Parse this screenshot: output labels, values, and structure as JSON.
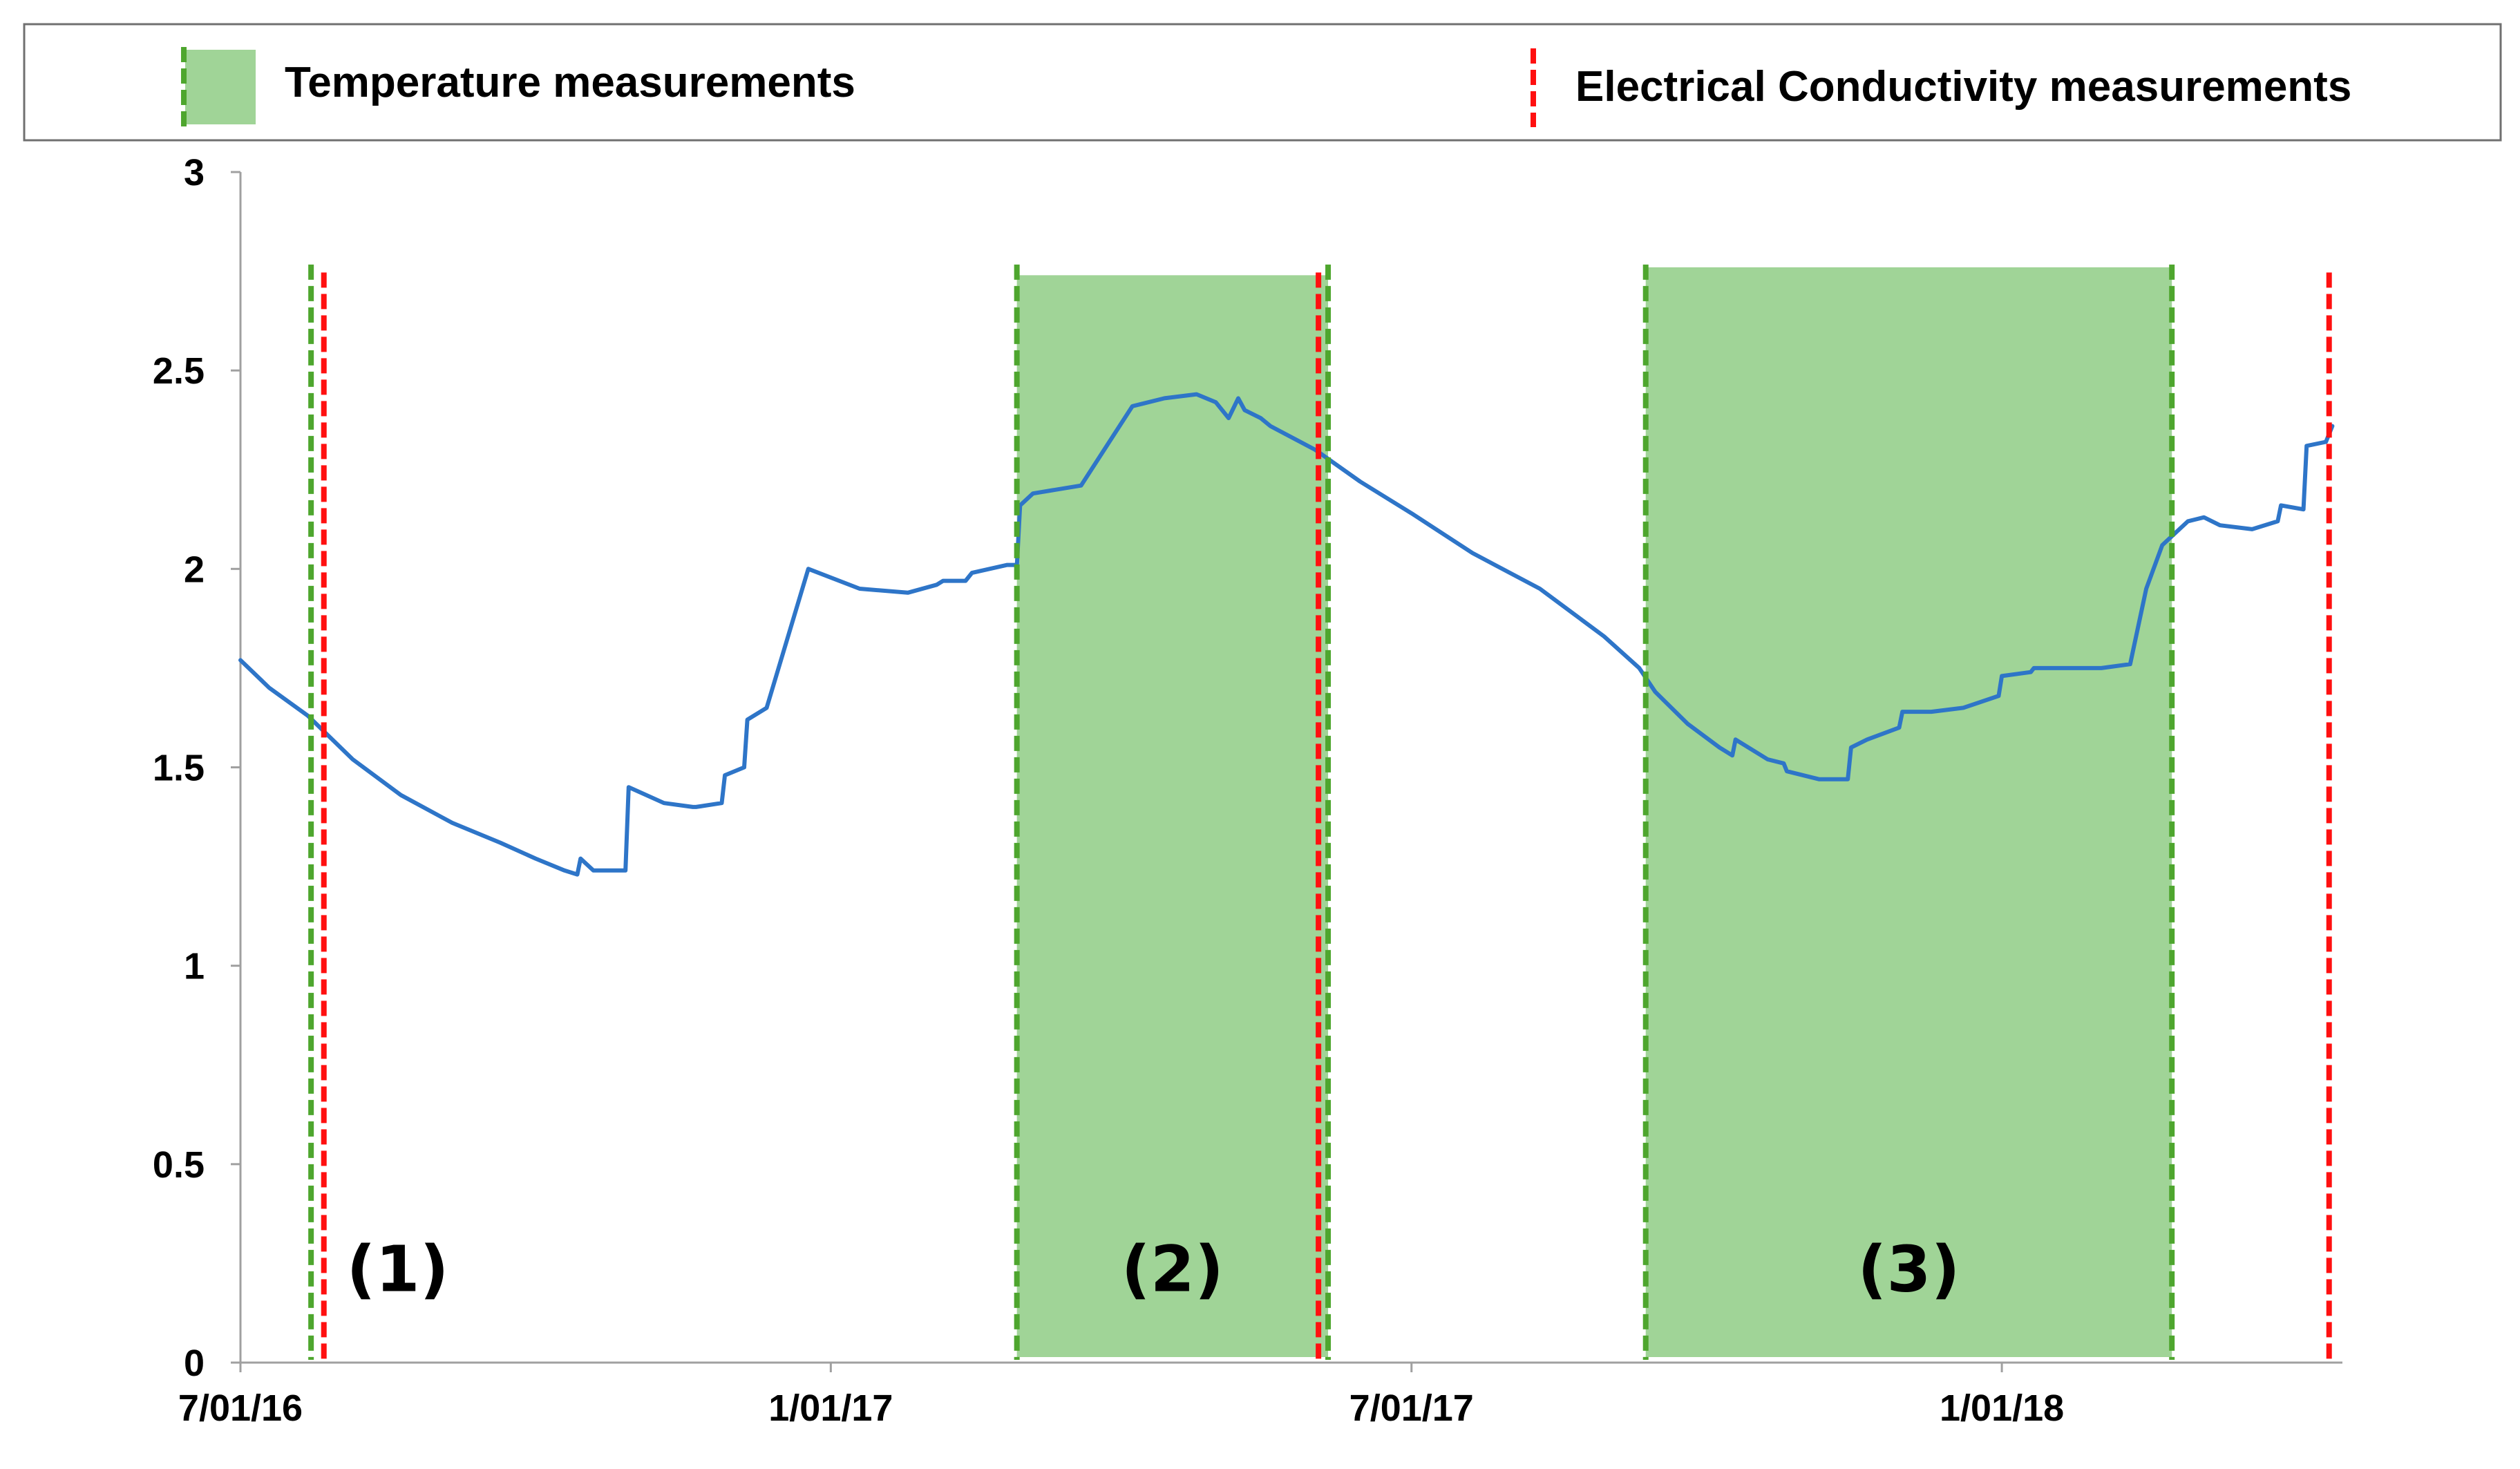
{
  "colors": {
    "series": "#2E75C8",
    "temperature_fill": "#A0D497",
    "temperature_line": "#4EA62E",
    "ec_line": "#FF1010",
    "axis": "#A0A0A0",
    "legend_border": "#707070"
  },
  "chart_data": {
    "type": "line",
    "title": "",
    "xlabel": "",
    "ylabel": "",
    "x_type": "date",
    "xlim": [
      "2016-07-01",
      "2018-04-15"
    ],
    "ylim": [
      0,
      3
    ],
    "yticks": [
      "0",
      "0.5",
      "1",
      "1.5",
      "2",
      "2.5",
      "3"
    ],
    "xticks": [
      {
        "date": "2016-07-01",
        "label": "7/01/16"
      },
      {
        "date": "2017-01-01",
        "label": "1/01/17"
      },
      {
        "date": "2017-07-01",
        "label": "7/01/17"
      },
      {
        "date": "2018-01-01",
        "label": "1/01/18"
      }
    ],
    "grid": false,
    "legend_position": "top",
    "legend": {
      "temperature": "Temperature measurements",
      "ec": "Electrical Conductivity measurements"
    },
    "series": [
      {
        "x": [
          "2016-07-01",
          "2016-07-10",
          "2016-07-22",
          "2016-08-05",
          "2016-08-20",
          "2016-09-05",
          "2016-09-20",
          "2016-10-01",
          "2016-10-10",
          "2016-10-14",
          "2016-10-15",
          "2016-10-19",
          "2016-10-20",
          "2016-10-25",
          "2016-10-29",
          "2016-10-30",
          "2016-11-10",
          "2016-11-19",
          "2016-11-20",
          "2016-11-28",
          "2016-11-29",
          "2016-12-05",
          "2016-12-06",
          "2016-12-12",
          "2016-12-25",
          "2017-01-10",
          "2017-01-25",
          "2017-02-03",
          "2017-02-05",
          "2017-02-12",
          "2017-02-14",
          "2017-02-25",
          "2017-02-28",
          "2017-03-01",
          "2017-03-05",
          "2017-03-20",
          "2017-04-05",
          "2017-04-15",
          "2017-04-25",
          "2017-05-01",
          "2017-05-05",
          "2017-05-08",
          "2017-05-10",
          "2017-05-15",
          "2017-05-18",
          "2017-06-01",
          "2017-06-15",
          "2017-07-01",
          "2017-07-20",
          "2017-08-10",
          "2017-08-30",
          "2017-09-10",
          "2017-09-15",
          "2017-09-25",
          "2017-10-05",
          "2017-10-09",
          "2017-10-10",
          "2017-10-20",
          "2017-10-25",
          "2017-10-26",
          "2017-11-05",
          "2017-11-10",
          "2017-11-14",
          "2017-11-15",
          "2017-11-20",
          "2017-11-30",
          "2017-12-01",
          "2017-12-10",
          "2017-12-20",
          "2017-12-31",
          "2018-01-01",
          "2018-01-10",
          "2018-01-11",
          "2018-01-20",
          "2018-02-01",
          "2018-02-10",
          "2018-02-15",
          "2018-02-20",
          "2018-02-28",
          "2018-03-05",
          "2018-03-10",
          "2018-03-20",
          "2018-03-28",
          "2018-03-29",
          "2018-04-05",
          "2018-04-06",
          "2018-04-12",
          "2018-04-14"
        ],
        "y": [
          1.77,
          1.7,
          1.63,
          1.52,
          1.43,
          1.36,
          1.31,
          1.27,
          1.24,
          1.23,
          1.27,
          1.24,
          1.24,
          1.24,
          1.24,
          1.45,
          1.41,
          1.4,
          1.4,
          1.41,
          1.48,
          1.5,
          1.62,
          1.65,
          2.0,
          1.95,
          1.94,
          1.96,
          1.97,
          1.97,
          1.99,
          2.01,
          2.01,
          2.16,
          2.19,
          2.21,
          2.41,
          2.43,
          2.44,
          2.42,
          2.38,
          2.43,
          2.4,
          2.38,
          2.36,
          2.3,
          2.22,
          2.14,
          2.04,
          1.95,
          1.83,
          1.75,
          1.69,
          1.61,
          1.55,
          1.53,
          1.57,
          1.52,
          1.51,
          1.49,
          1.47,
          1.47,
          1.47,
          1.55,
          1.57,
          1.6,
          1.64,
          1.64,
          1.65,
          1.68,
          1.73,
          1.74,
          1.75,
          1.75,
          1.75,
          1.76,
          1.95,
          2.06,
          2.12,
          2.13,
          2.11,
          2.1,
          2.12,
          2.16,
          2.15,
          2.31,
          2.32,
          2.36
        ]
      }
    ],
    "temperature_periods": [
      {
        "start": "2017-02-28",
        "end": "2017-06-05",
        "top": 2.74,
        "label": "(2)"
      },
      {
        "start": "2017-09-12",
        "end": "2018-02-23",
        "top": 2.76,
        "label": "(3)"
      }
    ],
    "temperature_lines": [
      "2016-07-23",
      "2017-02-28",
      "2017-06-05",
      "2017-09-12",
      "2018-02-23"
    ],
    "ec_lines": [
      "2016-07-27",
      "2017-06-02",
      "2018-04-13"
    ],
    "annotations": [
      {
        "date": "2016-08-19",
        "y": 0.18,
        "text": "(1)"
      }
    ]
  }
}
